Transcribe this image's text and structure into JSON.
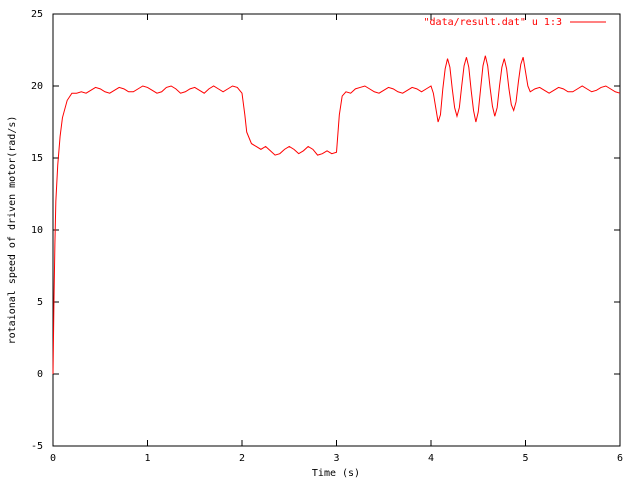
{
  "chart_data": {
    "type": "line",
    "xlabel": "Time (s)",
    "ylabel": "rotaional speed of driven motor(rad/s)",
    "xlim": [
      0,
      6
    ],
    "ylim": [
      -5,
      25
    ],
    "xticks": [
      0,
      1,
      2,
      3,
      4,
      5,
      6
    ],
    "yticks": [
      -5,
      0,
      5,
      10,
      15,
      20,
      25
    ],
    "legend": "top-right",
    "x": [
      0,
      0.01,
      0.02,
      0.03,
      0.05,
      0.075,
      0.1,
      0.15,
      0.2,
      0.25,
      0.3,
      0.35,
      0.4,
      0.45,
      0.5,
      0.55,
      0.6,
      0.65,
      0.7,
      0.75,
      0.8,
      0.85,
      0.9,
      0.95,
      1.0,
      1.05,
      1.1,
      1.15,
      1.2,
      1.25,
      1.3,
      1.35,
      1.4,
      1.45,
      1.5,
      1.55,
      1.6,
      1.65,
      1.7,
      1.75,
      1.8,
      1.85,
      1.9,
      1.95,
      2.0,
      2.03,
      2.05,
      2.1,
      2.15,
      2.2,
      2.25,
      2.3,
      2.35,
      2.4,
      2.45,
      2.5,
      2.55,
      2.6,
      2.65,
      2.7,
      2.75,
      2.8,
      2.85,
      2.9,
      2.95,
      3.0,
      3.03,
      3.06,
      3.1,
      3.15,
      3.2,
      3.25,
      3.3,
      3.35,
      3.4,
      3.45,
      3.5,
      3.55,
      3.6,
      3.65,
      3.7,
      3.75,
      3.8,
      3.85,
      3.9,
      3.95,
      4.0,
      4.025,
      4.05,
      4.075,
      4.1,
      4.125,
      4.15,
      4.175,
      4.2,
      4.225,
      4.25,
      4.275,
      4.3,
      4.325,
      4.35,
      4.375,
      4.4,
      4.425,
      4.45,
      4.475,
      4.5,
      4.525,
      4.55,
      4.575,
      4.6,
      4.625,
      4.65,
      4.675,
      4.7,
      4.725,
      4.75,
      4.775,
      4.8,
      4.825,
      4.85,
      4.875,
      4.9,
      4.925,
      4.95,
      4.975,
      5.0,
      5.025,
      5.05,
      5.1,
      5.15,
      5.2,
      5.25,
      5.3,
      5.35,
      5.4,
      5.45,
      5.5,
      5.55,
      5.6,
      5.65,
      5.7,
      5.75,
      5.8,
      5.85,
      5.9,
      5.95,
      6.0
    ],
    "series": [
      {
        "name": "\"data/result.dat\" u 1:3",
        "color": "#ff0000",
        "values": [
          0,
          5,
          9,
          12,
          14.5,
          16.5,
          17.8,
          19,
          19.5,
          19.5,
          19.6,
          19.5,
          19.7,
          19.9,
          19.8,
          19.6,
          19.5,
          19.7,
          19.9,
          19.8,
          19.6,
          19.6,
          19.8,
          20.0,
          19.9,
          19.7,
          19.5,
          19.6,
          19.9,
          20.0,
          19.8,
          19.5,
          19.6,
          19.8,
          19.9,
          19.7,
          19.5,
          19.8,
          20.0,
          19.8,
          19.6,
          19.8,
          20.0,
          19.9,
          19.5,
          18,
          16.8,
          16.0,
          15.8,
          15.6,
          15.8,
          15.5,
          15.2,
          15.3,
          15.6,
          15.8,
          15.6,
          15.3,
          15.5,
          15.8,
          15.6,
          15.2,
          15.3,
          15.5,
          15.3,
          15.4,
          18,
          19.3,
          19.6,
          19.5,
          19.8,
          19.9,
          20.0,
          19.8,
          19.6,
          19.5,
          19.7,
          19.9,
          19.8,
          19.6,
          19.5,
          19.7,
          19.9,
          19.8,
          19.6,
          19.8,
          20.0,
          19.5,
          18.5,
          17.5,
          18.0,
          19.8,
          21.2,
          21.9,
          21.3,
          19.8,
          18.5,
          17.9,
          18.5,
          20.0,
          21.4,
          22.0,
          21.3,
          19.7,
          18.3,
          17.5,
          18.2,
          19.8,
          21.4,
          22.1,
          21.4,
          19.9,
          18.6,
          17.9,
          18.5,
          20.0,
          21.3,
          21.9,
          21.2,
          19.8,
          18.7,
          18.3,
          18.9,
          20.3,
          21.5,
          22.0,
          21.0,
          20.0,
          19.6,
          19.8,
          19.9,
          19.7,
          19.5,
          19.7,
          19.9,
          19.8,
          19.6,
          19.6,
          19.8,
          20.0,
          19.8,
          19.6,
          19.7,
          19.9,
          20.0,
          19.8,
          19.6,
          19.5
        ]
      }
    ]
  }
}
